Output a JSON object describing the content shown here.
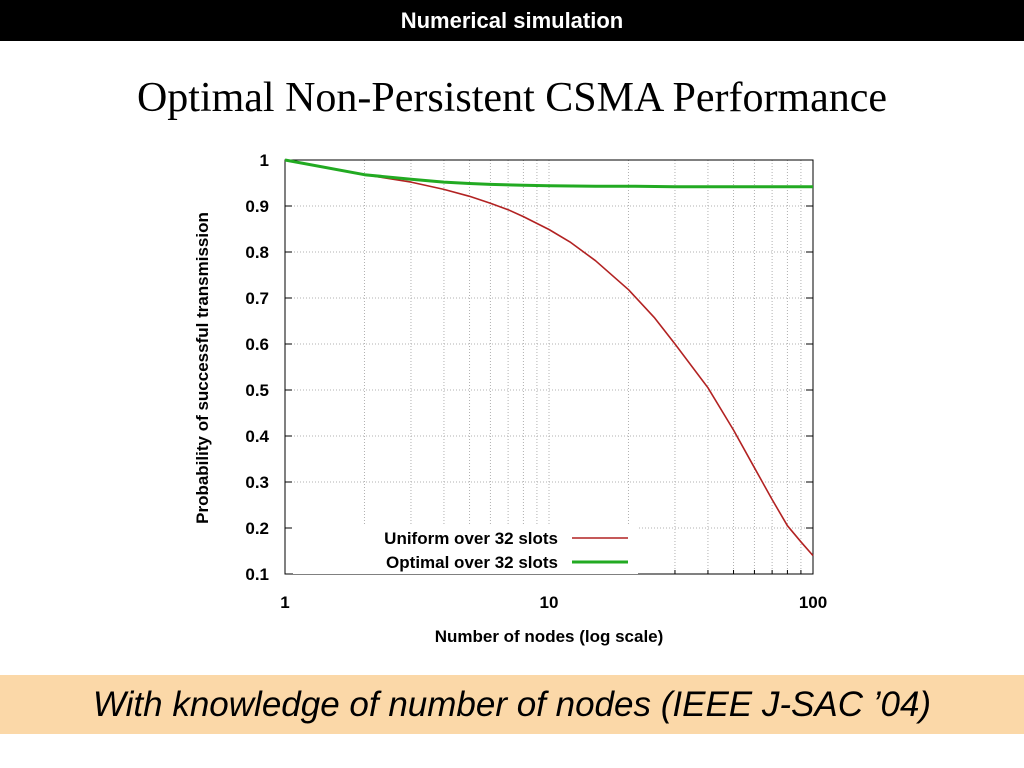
{
  "header": {
    "title": "Numerical simulation"
  },
  "slide": {
    "title": "Optimal Non-Persistent CSMA Performance",
    "caption": "With knowledge of number of nodes (IEEE J-SAC ’04)"
  },
  "chart_data": {
    "type": "line",
    "xlabel": "Number of nodes (log scale)",
    "ylabel": "Probability of successful transmission",
    "xscale": "log",
    "xlim": [
      1,
      100
    ],
    "ylim": [
      0.1,
      1
    ],
    "x_ticks": [
      1,
      10,
      100
    ],
    "x_tick_labels": [
      "1",
      "10",
      "100"
    ],
    "y_ticks": [
      0.1,
      0.2,
      0.3,
      0.4,
      0.5,
      0.6,
      0.7,
      0.8,
      0.9,
      1
    ],
    "y_tick_labels": [
      "0.1",
      "0.2",
      "0.3",
      "0.4",
      "0.5",
      "0.6",
      "0.7",
      "0.8",
      "0.9",
      "1"
    ],
    "grid": true,
    "legend_position": "bottom-right",
    "series": [
      {
        "name": "Uniform over 32 slots",
        "color": "#b22222",
        "x": [
          1,
          2,
          3,
          4,
          5,
          6,
          7,
          8,
          10,
          12,
          15,
          20,
          25,
          30,
          40,
          50,
          60,
          70,
          80,
          90,
          100
        ],
        "y": [
          1.0,
          0.968,
          0.952,
          0.936,
          0.921,
          0.906,
          0.892,
          0.877,
          0.849,
          0.822,
          0.781,
          0.718,
          0.658,
          0.6,
          0.505,
          0.413,
          0.331,
          0.262,
          0.205,
          0.17,
          0.14
        ]
      },
      {
        "name": "Optimal over 32 slots",
        "color": "#22aa22",
        "x": [
          1,
          2,
          3,
          4,
          5,
          6,
          8,
          10,
          15,
          20,
          30,
          50,
          70,
          100
        ],
        "y": [
          1.0,
          0.968,
          0.958,
          0.952,
          0.949,
          0.947,
          0.945,
          0.944,
          0.943,
          0.943,
          0.942,
          0.942,
          0.942,
          0.942
        ]
      }
    ]
  }
}
